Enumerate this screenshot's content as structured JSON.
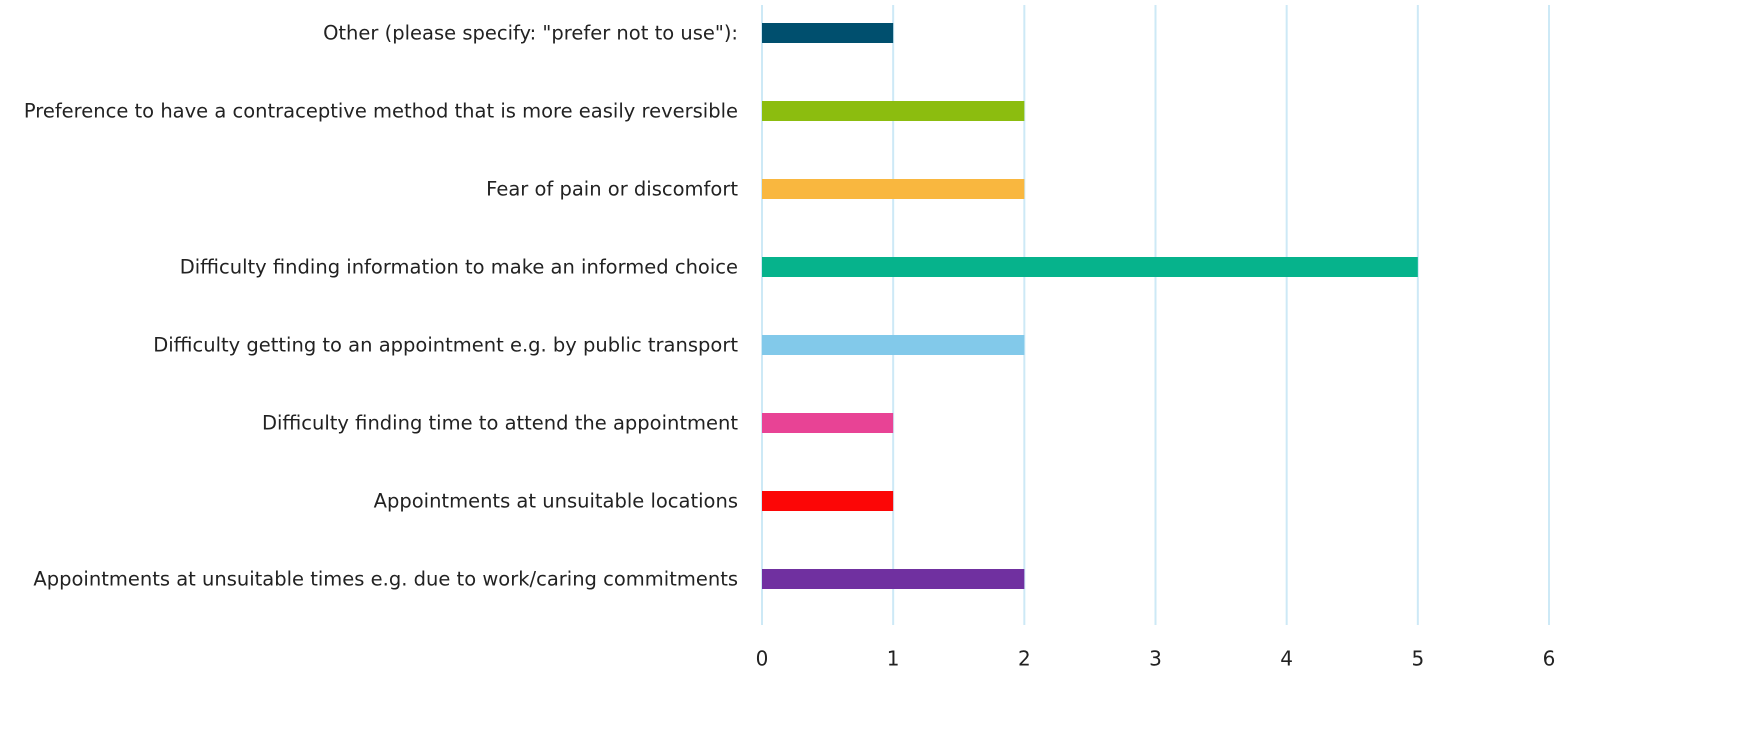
{
  "chart_data": {
    "type": "bar",
    "orientation": "horizontal",
    "categories": [
      "Other (please specify: \"prefer not to use\"):",
      "Preference to have a contraceptive method that is more easily reversible",
      "Fear of pain or discomfort",
      "Difficulty finding information to make an informed choice",
      "Difficulty getting to an appointment e.g. by public transport",
      "Difficulty finding time to attend the appointment",
      "Appointments at unsuitable locations",
      "Appointments at unsuitable times e.g. due to work/caring commitments"
    ],
    "values": [
      1,
      2,
      2,
      5,
      2,
      1,
      1,
      2
    ],
    "colors": [
      "#004f6e",
      "#8cbd0f",
      "#f9b73f",
      "#06b38c",
      "#82c9ea",
      "#e84395",
      "#fc0606",
      "#7030a0"
    ],
    "xlim": [
      0,
      6
    ],
    "xticks": [
      0,
      1,
      2,
      3,
      4,
      5,
      6
    ],
    "grid": true
  }
}
